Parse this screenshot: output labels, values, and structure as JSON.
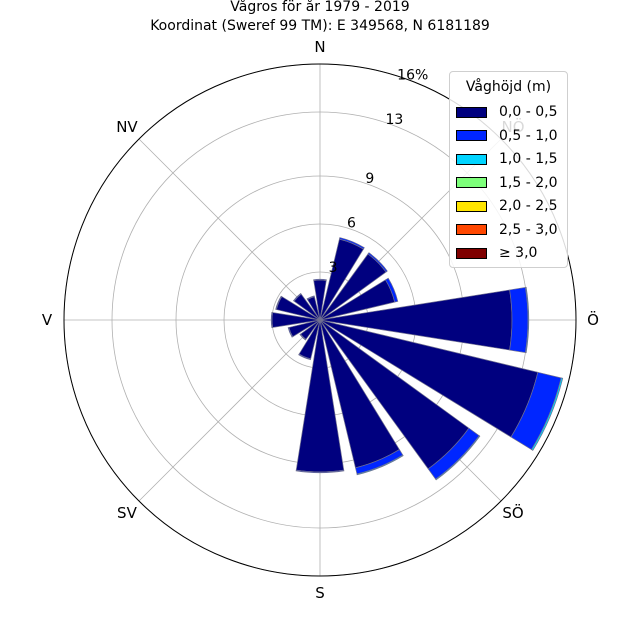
{
  "title": {
    "line1": "Vågros för år 1979 - 2019",
    "line2": "Koordinat (Sweref 99 TM): E 349568, N 6181189"
  },
  "colors": [
    "#00007f",
    "#0026ff",
    "#00d4ff",
    "#7dff7a",
    "#ffe500",
    "#ff4700",
    "#7f0000"
  ],
  "chart_data": {
    "type": "rose",
    "title": "Vågros för år 1979 - 2019",
    "subtitle": "Koordinat (Sweref 99 TM): E 349568, N 6181189",
    "directions": [
      "N",
      "NNÖ",
      "NÖ",
      "ÖNÖ",
      "Ö",
      "ÖSÖ",
      "SÖ",
      "SSÖ",
      "S",
      "SSV",
      "SV",
      "VSV",
      "V",
      "VNV",
      "NV",
      "NNV"
    ],
    "compass_labels": [
      "N",
      "NÖ",
      "Ö",
      "SÖ",
      "S",
      "SV",
      "V",
      "NV"
    ],
    "radial_ticks": [
      "3",
      "6",
      "9",
      "13",
      "16%"
    ],
    "radial_tick_values": [
      3,
      6,
      9,
      13,
      16
    ],
    "radial_max": 16,
    "legend_title": "Våghöjd (m)",
    "series": [
      {
        "name": "0,0 - 0,5",
        "values": [
          2.5,
          5.2,
          5.1,
          4.8,
          12.0,
          14.0,
          11.5,
          9.5,
          9.5,
          2.5,
          1.5,
          2.0,
          3.0,
          2.8,
          2.0,
          1.5
        ]
      },
      {
        "name": "0,5 - 1,0",
        "values": [
          0.05,
          0.1,
          0.1,
          0.2,
          1.0,
          1.5,
          0.8,
          0.4,
          0.05,
          0.05,
          0.05,
          0.05,
          0.05,
          0.05,
          0.05,
          0.05
        ]
      },
      {
        "name": "1,0 - 1,5",
        "values": [
          0,
          0,
          0,
          0,
          0.05,
          0.1,
          0.05,
          0.05,
          0,
          0,
          0,
          0,
          0,
          0,
          0,
          0
        ]
      },
      {
        "name": "1,5 - 2,0",
        "values": [
          0,
          0,
          0,
          0,
          0,
          0,
          0,
          0,
          0,
          0,
          0,
          0,
          0,
          0,
          0,
          0
        ]
      },
      {
        "name": "2,0 - 2,5",
        "values": [
          0,
          0,
          0,
          0,
          0,
          0,
          0,
          0,
          0,
          0,
          0,
          0,
          0,
          0,
          0,
          0
        ]
      },
      {
        "name": "2,5 - 3,0",
        "values": [
          0,
          0,
          0,
          0,
          0,
          0,
          0,
          0,
          0,
          0,
          0,
          0,
          0,
          0,
          0,
          0
        ]
      },
      {
        "name": "≥ 3,0",
        "values": [
          0,
          0,
          0,
          0,
          0,
          0,
          0,
          0,
          0,
          0,
          0,
          0,
          0,
          0,
          0,
          0
        ]
      }
    ],
    "grid": true,
    "legend_position": "top-right"
  }
}
